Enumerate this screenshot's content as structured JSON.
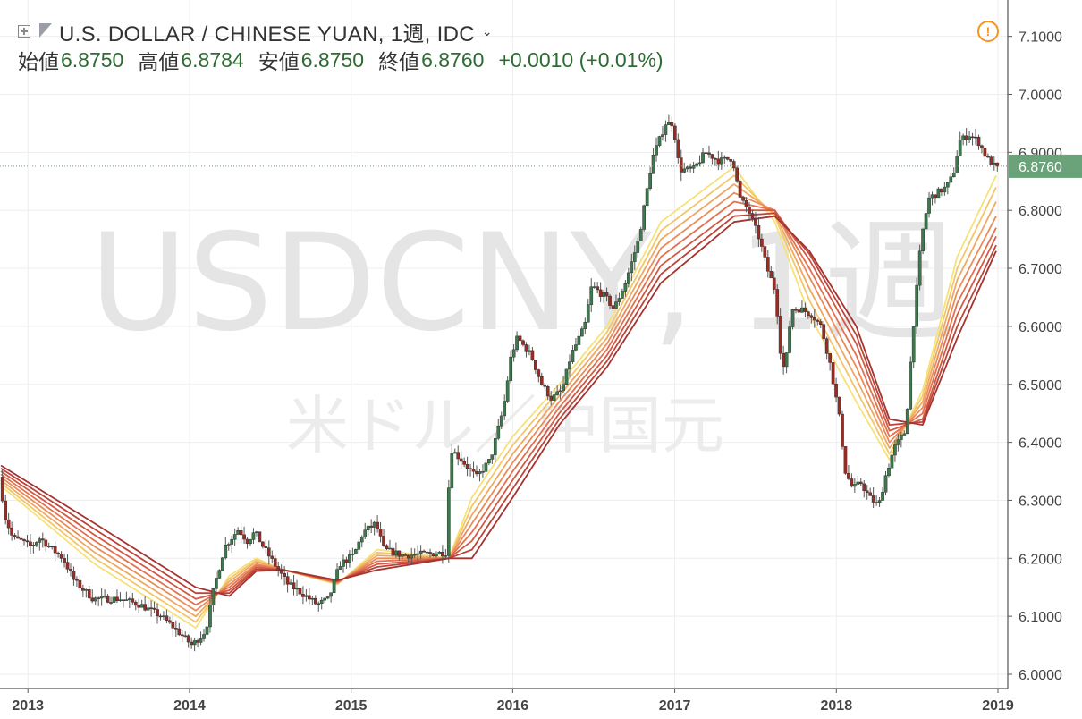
{
  "legend": {
    "symbol_title": "U.S. DOLLAR / CHINESE YUAN, 1週, IDC",
    "open_label": "始値",
    "open_value": "6.8750",
    "high_label": "高値",
    "high_value": "6.8784",
    "low_label": "安値",
    "low_value": "6.8750",
    "close_label": "終値",
    "close_value": "6.8760",
    "change": "+0.0010 (+0.01%)",
    "icons": [
      "expand-icon",
      "flag-icon",
      "chevron-down-icon",
      "warning-icon"
    ]
  },
  "watermark": {
    "symbol": "USDCNY, 1週",
    "description": "米ドル／中国元"
  },
  "colors": {
    "up": "#3c7a4e",
    "down": "#9b2c24",
    "background": "#ffffff",
    "grid": "#eeeeee",
    "last_price": "#6aa27a",
    "warning": "#f7941d",
    "ribbon": [
      "#f6e27a",
      "#f3c66a",
      "#efa862",
      "#ea8c59",
      "#e2714f",
      "#d25a45",
      "#bc4439",
      "#a33430"
    ]
  },
  "chart_data": {
    "type": "candlestick",
    "title": "U.S. DOLLAR / CHINESE YUAN, 1週, IDC",
    "interval": "1週",
    "x_ticks": [
      "2013",
      "2014",
      "2015",
      "2016",
      "2017",
      "2018",
      "2019"
    ],
    "y_ticks": [
      "6.0000",
      "6.1000",
      "6.2000",
      "6.3000",
      "6.4000",
      "6.5000",
      "6.6000",
      "6.7000",
      "6.8000",
      "6.9000",
      "7.0000",
      "7.1000"
    ],
    "ylim": [
      5.98,
      7.13
    ],
    "last_value": "6.8760",
    "grid": true,
    "price_path": [
      [
        "2012-11-01",
        6.34
      ],
      [
        "2012-11-15",
        6.27
      ],
      [
        "2012-12-01",
        6.235
      ],
      [
        "2012-12-20",
        6.23
      ],
      [
        "2013-01-10",
        6.22
      ],
      [
        "2013-02-01",
        6.235
      ],
      [
        "2013-03-01",
        6.215
      ],
      [
        "2013-03-25",
        6.2
      ],
      [
        "2013-04-20",
        6.16
      ],
      [
        "2013-06-01",
        6.13
      ],
      [
        "2013-08-01",
        6.13
      ],
      [
        "2013-09-15",
        6.12
      ],
      [
        "2013-11-01",
        6.1
      ],
      [
        "2013-12-01",
        6.08
      ],
      [
        "2014-01-10",
        6.05
      ],
      [
        "2014-02-10",
        6.075
      ],
      [
        "2014-03-01",
        6.15
      ],
      [
        "2014-03-25",
        6.22
      ],
      [
        "2014-04-25",
        6.25
      ],
      [
        "2014-05-15",
        6.23
      ],
      [
        "2014-06-01",
        6.245
      ],
      [
        "2014-06-20",
        6.22
      ],
      [
        "2014-07-15",
        6.19
      ],
      [
        "2014-08-15",
        6.155
      ],
      [
        "2014-09-15",
        6.14
      ],
      [
        "2014-10-20",
        6.12
      ],
      [
        "2014-11-15",
        6.13
      ],
      [
        "2014-12-10",
        6.19
      ],
      [
        "2015-01-10",
        6.205
      ],
      [
        "2015-02-01",
        6.245
      ],
      [
        "2015-03-01",
        6.26
      ],
      [
        "2015-03-20",
        6.215
      ],
      [
        "2015-05-01",
        6.205
      ],
      [
        "2015-08-08",
        6.21
      ],
      [
        "2015-08-16",
        6.39
      ],
      [
        "2015-09-10",
        6.37
      ],
      [
        "2015-10-15",
        6.34
      ],
      [
        "2015-11-15",
        6.37
      ],
      [
        "2015-12-15",
        6.46
      ],
      [
        "2016-01-01",
        6.55
      ],
      [
        "2016-01-15",
        6.58
      ],
      [
        "2016-02-15",
        6.55
      ],
      [
        "2016-03-10",
        6.5
      ],
      [
        "2016-04-01",
        6.475
      ],
      [
        "2016-04-25",
        6.49
      ],
      [
        "2016-05-15",
        6.55
      ],
      [
        "2016-06-15",
        6.6
      ],
      [
        "2016-07-01",
        6.67
      ],
      [
        "2016-08-01",
        6.65
      ],
      [
        "2016-08-20",
        6.63
      ],
      [
        "2016-09-15",
        6.675
      ],
      [
        "2016-10-15",
        6.75
      ],
      [
        "2016-11-15",
        6.89
      ],
      [
        "2016-12-15",
        6.95
      ],
      [
        "2017-01-01",
        6.95
      ],
      [
        "2017-01-15",
        6.87
      ],
      [
        "2017-02-15",
        6.87
      ],
      [
        "2017-03-15",
        6.9
      ],
      [
        "2017-04-15",
        6.885
      ],
      [
        "2017-05-15",
        6.89
      ],
      [
        "2017-06-01",
        6.82
      ],
      [
        "2017-06-20",
        6.8
      ],
      [
        "2017-07-15",
        6.75
      ],
      [
        "2017-08-01",
        6.7
      ],
      [
        "2017-08-20",
        6.66
      ],
      [
        "2017-09-01",
        6.55
      ],
      [
        "2017-09-10",
        6.52
      ],
      [
        "2017-09-25",
        6.63
      ],
      [
        "2017-10-15",
        6.63
      ],
      [
        "2017-11-10",
        6.62
      ],
      [
        "2017-12-01",
        6.6
      ],
      [
        "2017-12-20",
        6.54
      ],
      [
        "2018-01-10",
        6.45
      ],
      [
        "2018-01-25",
        6.35
      ],
      [
        "2018-02-10",
        6.32
      ],
      [
        "2018-03-01",
        6.33
      ],
      [
        "2018-03-20",
        6.305
      ],
      [
        "2018-04-10",
        6.29
      ],
      [
        "2018-04-25",
        6.34
      ],
      [
        "2018-05-15",
        6.39
      ],
      [
        "2018-06-10",
        6.42
      ],
      [
        "2018-06-25",
        6.58
      ],
      [
        "2018-07-15",
        6.75
      ],
      [
        "2018-08-01",
        6.82
      ],
      [
        "2018-08-20",
        6.83
      ],
      [
        "2018-09-10",
        6.84
      ],
      [
        "2018-09-25",
        6.86
      ],
      [
        "2018-10-10",
        6.92
      ],
      [
        "2018-11-01",
        6.93
      ],
      [
        "2018-11-20",
        6.92
      ],
      [
        "2018-12-10",
        6.89
      ],
      [
        "2018-12-28",
        6.876
      ]
    ],
    "ribbon_series": [
      {
        "name": "ma1",
        "points": [
          [
            "2012-11-01",
            6.325
          ],
          [
            "2013-06-01",
            6.19
          ],
          [
            "2014-01-15",
            6.08
          ],
          [
            "2014-04-01",
            6.17
          ],
          [
            "2014-06-01",
            6.2
          ],
          [
            "2014-08-01",
            6.18
          ],
          [
            "2014-12-01",
            6.155
          ],
          [
            "2015-03-01",
            6.215
          ],
          [
            "2015-08-10",
            6.2
          ],
          [
            "2015-10-01",
            6.305
          ],
          [
            "2016-01-01",
            6.41
          ],
          [
            "2016-04-15",
            6.5
          ],
          [
            "2016-08-01",
            6.6
          ],
          [
            "2016-12-01",
            6.78
          ],
          [
            "2017-05-15",
            6.875
          ],
          [
            "2017-08-15",
            6.78
          ],
          [
            "2017-11-01",
            6.62
          ],
          [
            "2018-02-15",
            6.47
          ],
          [
            "2018-05-01",
            6.37
          ],
          [
            "2018-07-15",
            6.49
          ],
          [
            "2018-10-01",
            6.72
          ],
          [
            "2018-12-28",
            6.86
          ]
        ]
      },
      {
        "name": "ma2",
        "points": [
          [
            "2012-11-01",
            6.33
          ],
          [
            "2013-06-01",
            6.2
          ],
          [
            "2014-01-15",
            6.09
          ],
          [
            "2014-04-01",
            6.165
          ],
          [
            "2014-06-01",
            6.197
          ],
          [
            "2014-08-01",
            6.18
          ],
          [
            "2014-12-01",
            6.156
          ],
          [
            "2015-03-01",
            6.21
          ],
          [
            "2015-08-10",
            6.2
          ],
          [
            "2015-10-01",
            6.29
          ],
          [
            "2016-01-01",
            6.395
          ],
          [
            "2016-04-15",
            6.49
          ],
          [
            "2016-08-01",
            6.59
          ],
          [
            "2016-12-01",
            6.765
          ],
          [
            "2017-05-15",
            6.86
          ],
          [
            "2017-08-15",
            6.79
          ],
          [
            "2017-11-01",
            6.645
          ],
          [
            "2018-02-15",
            6.49
          ],
          [
            "2018-05-01",
            6.38
          ],
          [
            "2018-07-15",
            6.48
          ],
          [
            "2018-10-01",
            6.7
          ],
          [
            "2018-12-28",
            6.84
          ]
        ]
      },
      {
        "name": "ma3",
        "points": [
          [
            "2012-11-01",
            6.335
          ],
          [
            "2013-06-01",
            6.21
          ],
          [
            "2014-01-15",
            6.1
          ],
          [
            "2014-04-01",
            6.16
          ],
          [
            "2014-06-01",
            6.194
          ],
          [
            "2014-08-01",
            6.18
          ],
          [
            "2014-12-01",
            6.157
          ],
          [
            "2015-03-01",
            6.205
          ],
          [
            "2015-08-10",
            6.2
          ],
          [
            "2015-10-01",
            6.275
          ],
          [
            "2016-01-01",
            6.38
          ],
          [
            "2016-04-15",
            6.48
          ],
          [
            "2016-08-01",
            6.58
          ],
          [
            "2016-12-01",
            6.75
          ],
          [
            "2017-05-15",
            6.845
          ],
          [
            "2017-08-15",
            6.795
          ],
          [
            "2017-11-01",
            6.665
          ],
          [
            "2018-02-15",
            6.51
          ],
          [
            "2018-05-01",
            6.39
          ],
          [
            "2018-07-15",
            6.47
          ],
          [
            "2018-10-01",
            6.68
          ],
          [
            "2018-12-28",
            6.815
          ]
        ]
      },
      {
        "name": "ma4",
        "points": [
          [
            "2012-11-01",
            6.34
          ],
          [
            "2013-06-01",
            6.22
          ],
          [
            "2014-01-15",
            6.11
          ],
          [
            "2014-04-01",
            6.155
          ],
          [
            "2014-06-01",
            6.19
          ],
          [
            "2014-08-01",
            6.18
          ],
          [
            "2014-12-01",
            6.158
          ],
          [
            "2015-03-01",
            6.2
          ],
          [
            "2015-08-10",
            6.2
          ],
          [
            "2015-10-01",
            6.26
          ],
          [
            "2016-01-01",
            6.365
          ],
          [
            "2016-04-15",
            6.47
          ],
          [
            "2016-08-01",
            6.57
          ],
          [
            "2016-12-01",
            6.735
          ],
          [
            "2017-05-15",
            6.83
          ],
          [
            "2017-08-15",
            6.8
          ],
          [
            "2017-11-01",
            6.685
          ],
          [
            "2018-02-15",
            6.53
          ],
          [
            "2018-05-01",
            6.4
          ],
          [
            "2018-07-15",
            6.46
          ],
          [
            "2018-10-01",
            6.66
          ],
          [
            "2018-12-28",
            6.79
          ]
        ]
      },
      {
        "name": "ma5",
        "points": [
          [
            "2012-11-01",
            6.345
          ],
          [
            "2013-06-01",
            6.23
          ],
          [
            "2014-01-15",
            6.12
          ],
          [
            "2014-04-01",
            6.15
          ],
          [
            "2014-06-01",
            6.187
          ],
          [
            "2014-08-01",
            6.18
          ],
          [
            "2014-12-01",
            6.159
          ],
          [
            "2015-03-01",
            6.195
          ],
          [
            "2015-08-10",
            6.2
          ],
          [
            "2015-10-01",
            6.245
          ],
          [
            "2016-01-01",
            6.35
          ],
          [
            "2016-04-15",
            6.46
          ],
          [
            "2016-08-01",
            6.56
          ],
          [
            "2016-12-01",
            6.72
          ],
          [
            "2017-05-15",
            6.815
          ],
          [
            "2017-08-15",
            6.8
          ],
          [
            "2017-11-01",
            6.7
          ],
          [
            "2018-02-15",
            6.55
          ],
          [
            "2018-05-01",
            6.41
          ],
          [
            "2018-07-15",
            6.45
          ],
          [
            "2018-10-01",
            6.64
          ],
          [
            "2018-12-28",
            6.77
          ]
        ]
      },
      {
        "name": "ma6",
        "points": [
          [
            "2012-11-01",
            6.35
          ],
          [
            "2013-06-01",
            6.24
          ],
          [
            "2014-01-15",
            6.13
          ],
          [
            "2014-04-01",
            6.145
          ],
          [
            "2014-06-01",
            6.184
          ],
          [
            "2014-08-01",
            6.18
          ],
          [
            "2014-12-01",
            6.16
          ],
          [
            "2015-03-01",
            6.19
          ],
          [
            "2015-08-10",
            6.2
          ],
          [
            "2015-10-01",
            6.23
          ],
          [
            "2016-01-01",
            6.335
          ],
          [
            "2016-04-15",
            6.45
          ],
          [
            "2016-08-01",
            6.55
          ],
          [
            "2016-12-01",
            6.705
          ],
          [
            "2017-05-15",
            6.8
          ],
          [
            "2017-08-15",
            6.8
          ],
          [
            "2017-11-01",
            6.715
          ],
          [
            "2018-02-15",
            6.57
          ],
          [
            "2018-05-01",
            6.42
          ],
          [
            "2018-07-15",
            6.44
          ],
          [
            "2018-10-01",
            6.62
          ],
          [
            "2018-12-28",
            6.755
          ]
        ]
      },
      {
        "name": "ma7",
        "points": [
          [
            "2012-11-01",
            6.355
          ],
          [
            "2013-06-01",
            6.25
          ],
          [
            "2014-01-15",
            6.14
          ],
          [
            "2014-04-01",
            6.14
          ],
          [
            "2014-06-01",
            6.181
          ],
          [
            "2014-08-01",
            6.18
          ],
          [
            "2014-12-01",
            6.161
          ],
          [
            "2015-03-01",
            6.185
          ],
          [
            "2015-08-10",
            6.2
          ],
          [
            "2015-10-01",
            6.215
          ],
          [
            "2016-01-01",
            6.32
          ],
          [
            "2016-04-15",
            6.44
          ],
          [
            "2016-08-01",
            6.54
          ],
          [
            "2016-12-01",
            6.69
          ],
          [
            "2017-05-15",
            6.79
          ],
          [
            "2017-08-15",
            6.795
          ],
          [
            "2017-11-01",
            6.725
          ],
          [
            "2018-02-15",
            6.585
          ],
          [
            "2018-05-01",
            6.43
          ],
          [
            "2018-07-15",
            6.435
          ],
          [
            "2018-10-01",
            6.6
          ],
          [
            "2018-12-28",
            6.74
          ]
        ]
      },
      {
        "name": "ma8",
        "points": [
          [
            "2012-11-01",
            6.36
          ],
          [
            "2013-06-01",
            6.26
          ],
          [
            "2014-01-15",
            6.15
          ],
          [
            "2014-04-01",
            6.135
          ],
          [
            "2014-06-01",
            6.178
          ],
          [
            "2014-08-01",
            6.18
          ],
          [
            "2014-12-01",
            6.162
          ],
          [
            "2015-03-01",
            6.18
          ],
          [
            "2015-08-10",
            6.2
          ],
          [
            "2015-10-01",
            6.2
          ],
          [
            "2016-01-01",
            6.305
          ],
          [
            "2016-04-15",
            6.43
          ],
          [
            "2016-08-01",
            6.53
          ],
          [
            "2016-12-01",
            6.675
          ],
          [
            "2017-05-15",
            6.78
          ],
          [
            "2017-08-15",
            6.79
          ],
          [
            "2017-11-01",
            6.73
          ],
          [
            "2018-02-15",
            6.6
          ],
          [
            "2018-05-01",
            6.44
          ],
          [
            "2018-07-15",
            6.43
          ],
          [
            "2018-10-01",
            6.58
          ],
          [
            "2018-12-28",
            6.73
          ]
        ]
      }
    ]
  }
}
